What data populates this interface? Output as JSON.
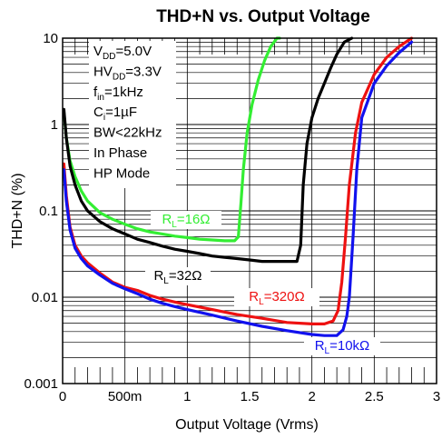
{
  "chart_data": {
    "type": "line",
    "title": "THD+N vs. Output Voltage",
    "xlabel": "Output Voltage (Vrms)",
    "ylabel": "THD+N (%)",
    "x_scale": "linear",
    "y_scale": "log",
    "xlim": [
      0,
      3
    ],
    "ylim": [
      0.001,
      10
    ],
    "grid": true,
    "x_ticks": [
      {
        "value": 0,
        "label": "0"
      },
      {
        "value": 0.5,
        "label": "500m"
      },
      {
        "value": 1,
        "label": "1"
      },
      {
        "value": 1.5,
        "label": "1.5"
      },
      {
        "value": 2,
        "label": "2"
      },
      {
        "value": 2.5,
        "label": "2.5"
      },
      {
        "value": 3,
        "label": "3"
      }
    ],
    "y_ticks": [
      {
        "value": 0.001,
        "label": "0.001"
      },
      {
        "value": 0.01,
        "label": "0.01"
      },
      {
        "value": 0.1,
        "label": "0.1"
      },
      {
        "value": 1,
        "label": "1"
      },
      {
        "value": 10,
        "label": "10"
      }
    ],
    "conditions": [
      {
        "main": "V",
        "sub": "DD",
        "rest": "=5.0V"
      },
      {
        "main": "HV",
        "sub": "DD",
        "rest": "=3.3V"
      },
      {
        "main": "f",
        "sub": "in",
        "rest": "=1kHz"
      },
      {
        "main": "C",
        "sub": "i",
        "rest": "=1µF"
      },
      {
        "main": "BW<22kHz",
        "sub": "",
        "rest": ""
      },
      {
        "main": "In Phase",
        "sub": "",
        "rest": ""
      },
      {
        "main": "HP Mode",
        "sub": "",
        "rest": ""
      }
    ],
    "series": [
      {
        "name_main": "R",
        "name_sub": "L",
        "name_rest": "=16Ω",
        "color": "#33ee33",
        "x": [
          0.01,
          0.03,
          0.06,
          0.1,
          0.15,
          0.2,
          0.3,
          0.4,
          0.5,
          0.6,
          0.7,
          0.8,
          0.9,
          1.0,
          1.1,
          1.2,
          1.3,
          1.38,
          1.41,
          1.43,
          1.45,
          1.48,
          1.52,
          1.57,
          1.62,
          1.67,
          1.72,
          1.74
        ],
        "y": [
          1.4,
          0.7,
          0.38,
          0.25,
          0.17,
          0.13,
          0.095,
          0.08,
          0.07,
          0.062,
          0.057,
          0.054,
          0.051,
          0.049,
          0.047,
          0.046,
          0.045,
          0.045,
          0.05,
          0.12,
          0.3,
          0.8,
          1.7,
          3.3,
          5.5,
          8.0,
          11,
          12
        ]
      },
      {
        "name_main": "R",
        "name_sub": "L",
        "name_rest": "=32Ω",
        "color": "#000000",
        "x": [
          0.01,
          0.03,
          0.06,
          0.1,
          0.15,
          0.2,
          0.3,
          0.4,
          0.5,
          0.6,
          0.7,
          0.8,
          0.9,
          1.0,
          1.1,
          1.2,
          1.3,
          1.4,
          1.5,
          1.6,
          1.7,
          1.8,
          1.88,
          1.91,
          1.93,
          1.96,
          2.0,
          2.05,
          2.1,
          2.15,
          2.2,
          2.26,
          2.32
        ],
        "y": [
          1.5,
          0.7,
          0.33,
          0.2,
          0.13,
          0.1,
          0.075,
          0.062,
          0.054,
          0.047,
          0.043,
          0.039,
          0.036,
          0.034,
          0.032,
          0.03,
          0.029,
          0.028,
          0.027,
          0.026,
          0.026,
          0.026,
          0.026,
          0.04,
          0.2,
          0.6,
          1.2,
          2.0,
          3.0,
          4.5,
          6.5,
          9.0,
          12
        ]
      },
      {
        "name_main": "R",
        "name_sub": "L",
        "name_rest": "=320Ω",
        "color": "#ee1111",
        "x": [
          0.01,
          0.03,
          0.06,
          0.1,
          0.15,
          0.2,
          0.3,
          0.4,
          0.5,
          0.6,
          0.7,
          0.8,
          0.9,
          1.0,
          1.2,
          1.4,
          1.6,
          1.8,
          2.0,
          2.1,
          2.17,
          2.21,
          2.24,
          2.27,
          2.3,
          2.35,
          2.4,
          2.5,
          2.6,
          2.7,
          2.8
        ],
        "y": [
          0.35,
          0.15,
          0.065,
          0.04,
          0.03,
          0.025,
          0.019,
          0.015,
          0.013,
          0.012,
          0.0105,
          0.0095,
          0.0088,
          0.0082,
          0.0072,
          0.0063,
          0.0057,
          0.0051,
          0.0049,
          0.0049,
          0.0053,
          0.007,
          0.015,
          0.05,
          0.2,
          0.8,
          1.8,
          3.8,
          6.0,
          8.0,
          10.0
        ]
      },
      {
        "name_main": "R",
        "name_sub": "L",
        "name_rest": "=10kΩ",
        "color": "#1111ee",
        "x": [
          0.01,
          0.03,
          0.06,
          0.1,
          0.15,
          0.2,
          0.3,
          0.4,
          0.5,
          0.6,
          0.7,
          0.8,
          0.9,
          1.0,
          1.2,
          1.4,
          1.6,
          1.8,
          2.0,
          2.1,
          2.2,
          2.25,
          2.28,
          2.3,
          2.33,
          2.36,
          2.4,
          2.5,
          2.6,
          2.7,
          2.8
        ],
        "y": [
          0.3,
          0.13,
          0.06,
          0.037,
          0.028,
          0.023,
          0.018,
          0.0145,
          0.0125,
          0.011,
          0.0095,
          0.0085,
          0.0078,
          0.0072,
          0.0062,
          0.0053,
          0.0046,
          0.0041,
          0.0037,
          0.0036,
          0.0036,
          0.0042,
          0.006,
          0.01,
          0.05,
          0.3,
          1.2,
          3.0,
          4.8,
          6.8,
          9.0
        ]
      }
    ]
  }
}
